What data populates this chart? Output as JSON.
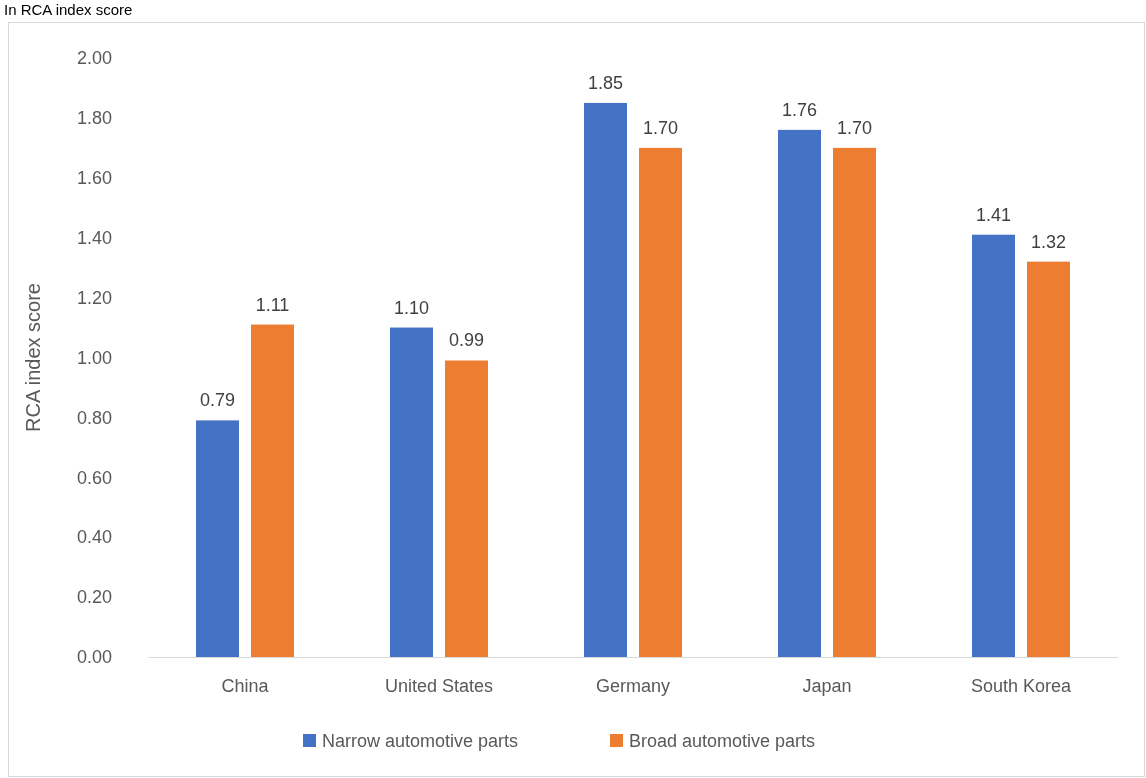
{
  "chart_data": {
    "type": "bar",
    "title": "In RCA index score",
    "ylabel": "RCA index score",
    "categories": [
      "China",
      "United States",
      "Germany",
      "Japan",
      "South Korea"
    ],
    "series": [
      {
        "name": "Narrow automotive parts",
        "color": "#4472c4",
        "values": [
          0.79,
          1.1,
          1.85,
          1.76,
          1.41
        ],
        "value_labels": [
          "0.79",
          "1.10",
          "1.85",
          "1.76",
          "1.41"
        ]
      },
      {
        "name": "Broad automotive parts",
        "color": "#ed7d31",
        "values": [
          1.11,
          0.99,
          1.7,
          1.7,
          1.32
        ],
        "value_labels": [
          "1.11",
          "0.99",
          "1.70",
          "1.70",
          "1.32"
        ]
      }
    ],
    "ylim": [
      0,
      2
    ],
    "yticks": [
      {
        "value": 0,
        "label": "0.00"
      },
      {
        "value": 0.2,
        "label": "0.20"
      },
      {
        "value": 0.4,
        "label": "0.40"
      },
      {
        "value": 0.6,
        "label": "0.60"
      },
      {
        "value": 0.8,
        "label": "0.80"
      },
      {
        "value": 1,
        "label": "1.00"
      },
      {
        "value": 1.2,
        "label": "1.20"
      },
      {
        "value": 1.4,
        "label": "1.40"
      },
      {
        "value": 1.6,
        "label": "1.60"
      },
      {
        "value": 1.8,
        "label": "1.80"
      },
      {
        "value": 2,
        "label": "2.00"
      }
    ],
    "legend": "bottom"
  }
}
